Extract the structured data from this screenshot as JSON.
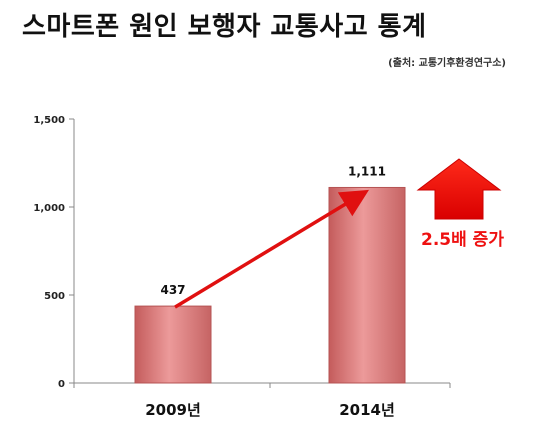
{
  "title": "스마트폰 원인 보행자 교통사고 통계",
  "source": "(출처: 교통기후환경연구소)",
  "chart_data": {
    "type": "bar",
    "categories": [
      "2009년",
      "2014년"
    ],
    "values": [
      437,
      1111
    ],
    "value_labels": [
      "437",
      "1,111"
    ],
    "ylim": [
      0,
      1500
    ],
    "yticks": [
      0,
      500,
      1000,
      1500
    ],
    "ytick_labels": [
      "0",
      "500",
      "1,000",
      "1,500"
    ],
    "grid": false,
    "bar_color": "#dc8585",
    "annotation": "2.5배 증가",
    "annotation_color": "#ee1111"
  }
}
